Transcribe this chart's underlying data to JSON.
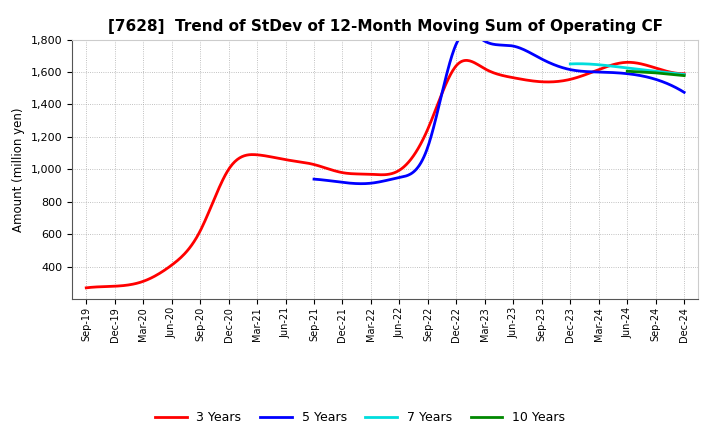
{
  "title": "[7628]  Trend of StDev of 12-Month Moving Sum of Operating CF",
  "ylabel": "Amount (million yen)",
  "ylim": [
    200,
    1800
  ],
  "yticks": [
    400,
    600,
    800,
    1000,
    1200,
    1400,
    1600,
    1800
  ],
  "background_color": "#ffffff",
  "plot_bg_color": "#ffffff",
  "grid_color": "#999999",
  "title_fontsize": 11,
  "legend": [
    "3 Years",
    "5 Years",
    "7 Years",
    "10 Years"
  ],
  "legend_colors": [
    "#ff0000",
    "#0000ff",
    "#00dddd",
    "#008800"
  ],
  "x_labels": [
    "Sep-19",
    "Dec-19",
    "Mar-20",
    "Jun-20",
    "Sep-20",
    "Dec-20",
    "Mar-21",
    "Jun-21",
    "Sep-21",
    "Dec-21",
    "Mar-22",
    "Jun-22",
    "Sep-22",
    "Dec-22",
    "Mar-23",
    "Jun-23",
    "Sep-23",
    "Dec-23",
    "Mar-24",
    "Jun-24",
    "Sep-24",
    "Dec-24"
  ],
  "series_3y": [
    270,
    280,
    310,
    410,
    620,
    1000,
    1090,
    1060,
    1030,
    980,
    970,
    995,
    1250,
    1640,
    1620,
    1565,
    1540,
    1555,
    1615,
    1660,
    1625,
    1590
  ],
  "series_5y": [
    null,
    null,
    null,
    null,
    null,
    null,
    null,
    null,
    940,
    920,
    915,
    950,
    1140,
    1775,
    1790,
    1760,
    1680,
    1615,
    1600,
    1590,
    1555,
    1475
  ],
  "series_7y": [
    null,
    null,
    null,
    null,
    null,
    null,
    null,
    null,
    null,
    null,
    null,
    null,
    null,
    null,
    null,
    null,
    null,
    1650,
    1645,
    1625,
    1605,
    1585
  ],
  "series_10y": [
    null,
    null,
    null,
    null,
    null,
    null,
    null,
    null,
    null,
    null,
    null,
    null,
    null,
    null,
    null,
    null,
    null,
    null,
    null,
    1605,
    1595,
    1578
  ]
}
